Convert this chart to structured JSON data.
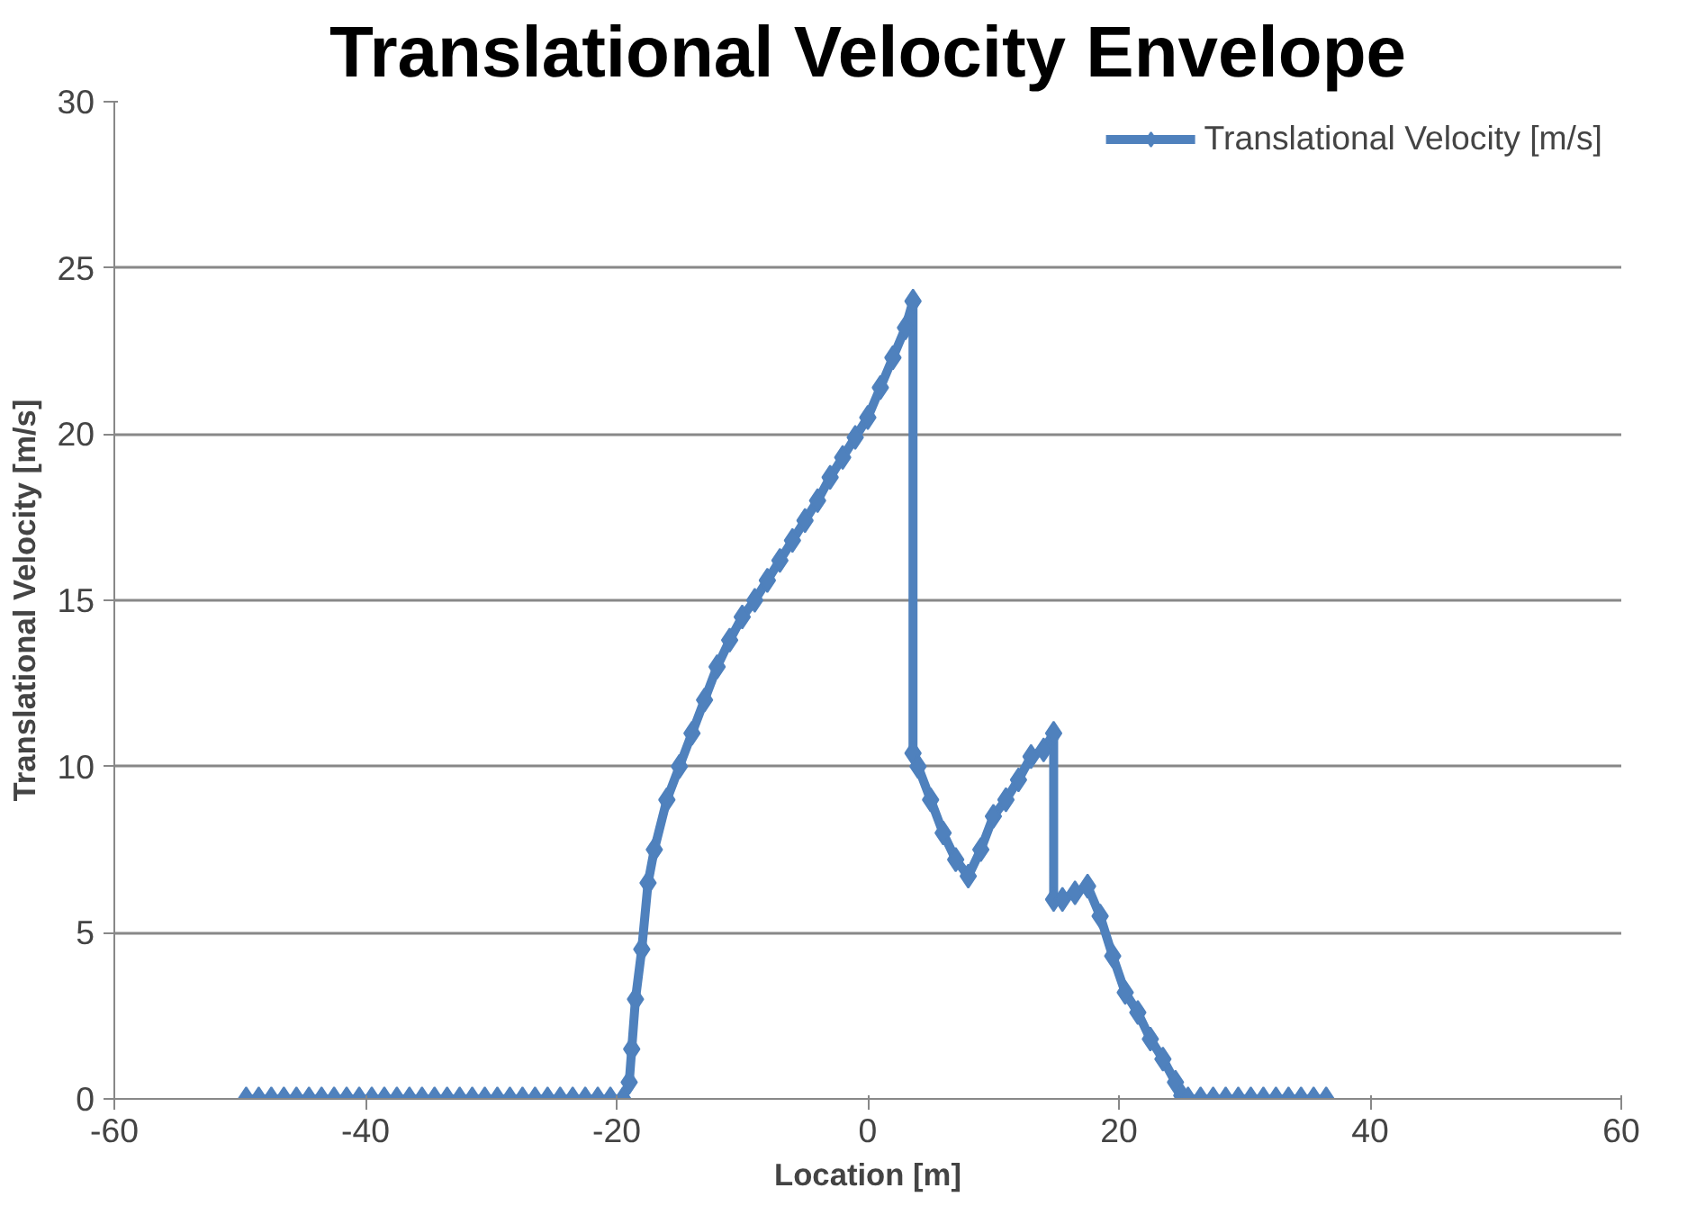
{
  "chart_data": {
    "type": "line",
    "title": "Translational Velocity Envelope",
    "xlabel": "Location [m]",
    "ylabel": "Translational Velocity [m/s]",
    "xlim": [
      -60,
      60
    ],
    "xticks": [
      -60,
      -40,
      -20,
      0,
      20,
      40,
      60
    ],
    "ylim": [
      0,
      30
    ],
    "yticks": [
      0,
      5,
      10,
      15,
      20,
      25,
      30
    ],
    "grid": "y",
    "legend": "top right",
    "marker": "diamond",
    "line_style": "solid",
    "series": [
      {
        "name": "Translational Velocity [m/s]",
        "color": "#4f81bd",
        "x": [
          -49.5,
          -48.5,
          -47.5,
          -46.5,
          -45.5,
          -44.5,
          -43.5,
          -42.5,
          -41.5,
          -40.5,
          -39.5,
          -38.5,
          -37.5,
          -36.5,
          -35.5,
          -34.5,
          -33.5,
          -32.5,
          -31.5,
          -30.5,
          -29.5,
          -28.5,
          -27.5,
          -26.5,
          -25.5,
          -24.5,
          -23.5,
          -22.5,
          -21.5,
          -20.5,
          -19.5,
          -19,
          -18.8,
          -18.5,
          -18,
          -17.5,
          -17,
          -16,
          -15,
          -14,
          -13,
          -12,
          -11,
          -10,
          -9,
          -8,
          -7,
          -6,
          -5,
          -4,
          -3,
          -2,
          -1,
          0,
          1,
          2,
          3,
          3.6,
          3.6,
          4,
          5,
          6,
          7,
          8,
          9,
          10,
          11,
          12,
          13,
          14,
          14.8,
          14.8,
          15.5,
          16.5,
          17.5,
          18.5,
          19.5,
          20.5,
          21.5,
          22.5,
          23.5,
          24.5,
          25,
          25.5,
          26.5,
          27.5,
          28.5,
          29.5,
          30.5,
          31.5,
          32.5,
          33.5,
          34.5,
          35.5,
          36.5
        ],
        "values": [
          0,
          0,
          0,
          0,
          0,
          0,
          0,
          0,
          0,
          0,
          0,
          0,
          0,
          0,
          0,
          0,
          0,
          0,
          0,
          0,
          0,
          0,
          0,
          0,
          0,
          0,
          0,
          0,
          0,
          0,
          0,
          0.5,
          1.5,
          3,
          4.5,
          6.5,
          7.5,
          9,
          10,
          11,
          12,
          13,
          13.8,
          14.5,
          15,
          15.6,
          16.2,
          16.8,
          17.4,
          18,
          18.7,
          19.3,
          19.9,
          20.5,
          21.4,
          22.3,
          23.2,
          24,
          10.4,
          10,
          9,
          8,
          7.2,
          6.7,
          7.5,
          8.5,
          9,
          9.6,
          10.3,
          10.5,
          11,
          6,
          6,
          6.2,
          6.4,
          5.5,
          4.3,
          3.2,
          2.6,
          1.8,
          1.2,
          0.5,
          0.1,
          0,
          0,
          0,
          0,
          0,
          0,
          0,
          0,
          0,
          0,
          0,
          0
        ]
      }
    ]
  }
}
